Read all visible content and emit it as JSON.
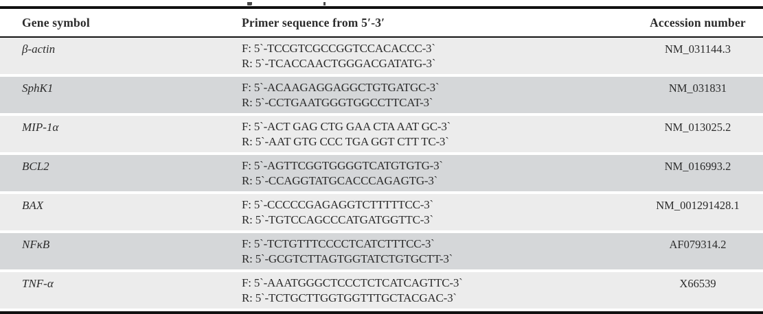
{
  "table": {
    "columns": [
      "Gene symbol",
      "Primer sequence from 5′-3′",
      "Accession number"
    ],
    "rows": [
      {
        "gene": "β-actin",
        "forward": "F: 5`-TCCGTCGCCGGTCCACACCC-3`",
        "reverse": "R: 5`-TCACCAACTGGGACGATATG-3`",
        "accession": "NM_031144.3"
      },
      {
        "gene": "SphK1",
        "forward": "F: 5`-ACAAGAGGAGGCTGTGATGC-3`",
        "reverse": "R: 5`-CCTGAATGGGTGGCCTTCAT-3`",
        "accession": "NM_031831"
      },
      {
        "gene": "MIP-1α",
        "forward": "F: 5`-ACT GAG CTG GAA CTA AAT GC-3`",
        "reverse": "R: 5`-AAT GTG CCC TGA GGT CTT TC-3`",
        "accession": "NM_013025.2"
      },
      {
        "gene": "BCL2",
        "forward": "F: 5`-AGTTCGGTGGGGTCATGTGTG-3`",
        "reverse": "R: 5`-CCAGGTATGCACCCAGAGTG-3`",
        "accession": "NM_016993.2"
      },
      {
        "gene": "BAX",
        "forward": "F: 5`-CCCCCGAGAGGTCTTTTTCC-3`",
        "reverse": "R: 5`-TGTCCAGCCCATGATGGTTC-3`",
        "accession": "NM_001291428.1"
      },
      {
        "gene": "NFκB",
        "forward": "F: 5`-TCTGTTTCCCCTCATCTTTCC-3`",
        "reverse": "R: 5`-GCGTCTTAGTGGTATCTGTGCTT-3`",
        "accession": "AF079314.2"
      },
      {
        "gene": "TNF-α",
        "forward": "F: 5`-AAATGGGCTCCCTCTCATCAGTTC-3`",
        "reverse": "R: 5`-TCTGCTTGGTGGTTTGCTACGAC-3`",
        "accession": "X66539"
      }
    ],
    "colors": {
      "row_light": "#ececec",
      "row_dark": "#d5d7d9",
      "rule": "#111111",
      "text": "#2b2b2b"
    }
  }
}
